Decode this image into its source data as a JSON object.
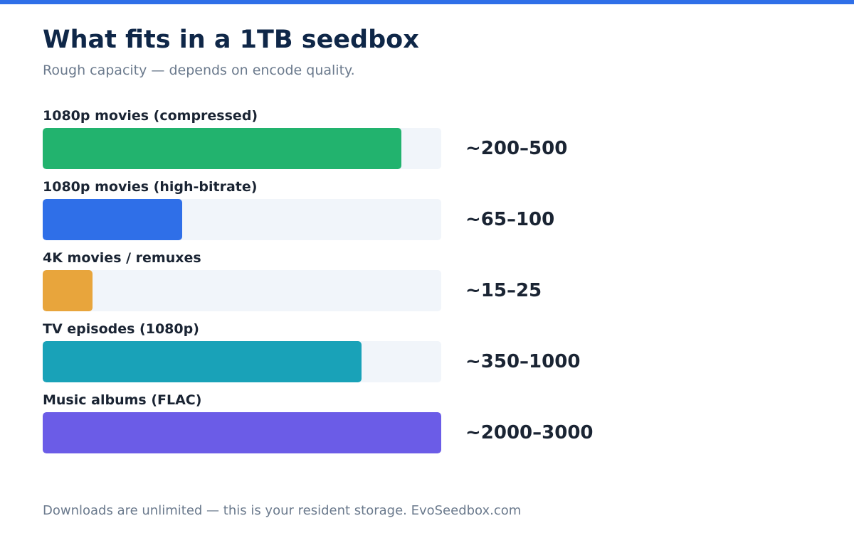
{
  "accent_color": "#2f6fe8",
  "header": {
    "title": "What fits in a 1TB seedbox",
    "subtitle": "Rough capacity — depends on encode quality."
  },
  "footer": {
    "text": "Downloads are unlimited — this is your resident storage. EvoSeedbox.com"
  },
  "chart_data": {
    "type": "bar",
    "orientation": "horizontal",
    "title": "What fits in a 1TB seedbox",
    "subtitle": "Rough capacity — depends on encode quality.",
    "xlabel": "",
    "ylabel": "",
    "grid": false,
    "legend": "none",
    "categories": [
      "1080p movies (compressed)",
      "1080p movies (high-bitrate)",
      "4K movies / remuxes",
      "TV episodes (1080p)",
      "Music albums (FLAC)"
    ],
    "value_labels": [
      "~200–500",
      "~65–100",
      "~15–25",
      "~350–1000",
      "~2000–3000"
    ],
    "bar_fill_fraction": [
      0.9,
      0.35,
      0.125,
      0.8,
      1.0
    ],
    "colors": [
      "#22b36e",
      "#2f6fe8",
      "#e8a53c",
      "#19a2b8",
      "#6b5ce7"
    ]
  }
}
